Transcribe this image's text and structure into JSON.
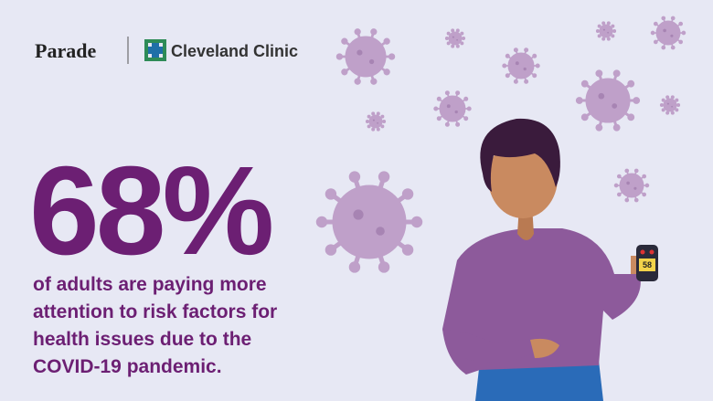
{
  "brand": {
    "publisher": "Parade",
    "partner": "Cleveland Clinic"
  },
  "stat": {
    "figure": "68%",
    "lines": [
      "of adults are paying more",
      "attention to risk factors for",
      "health issues due to the",
      "COVID-19 pandemic."
    ]
  },
  "device": {
    "reading": "58"
  }
}
